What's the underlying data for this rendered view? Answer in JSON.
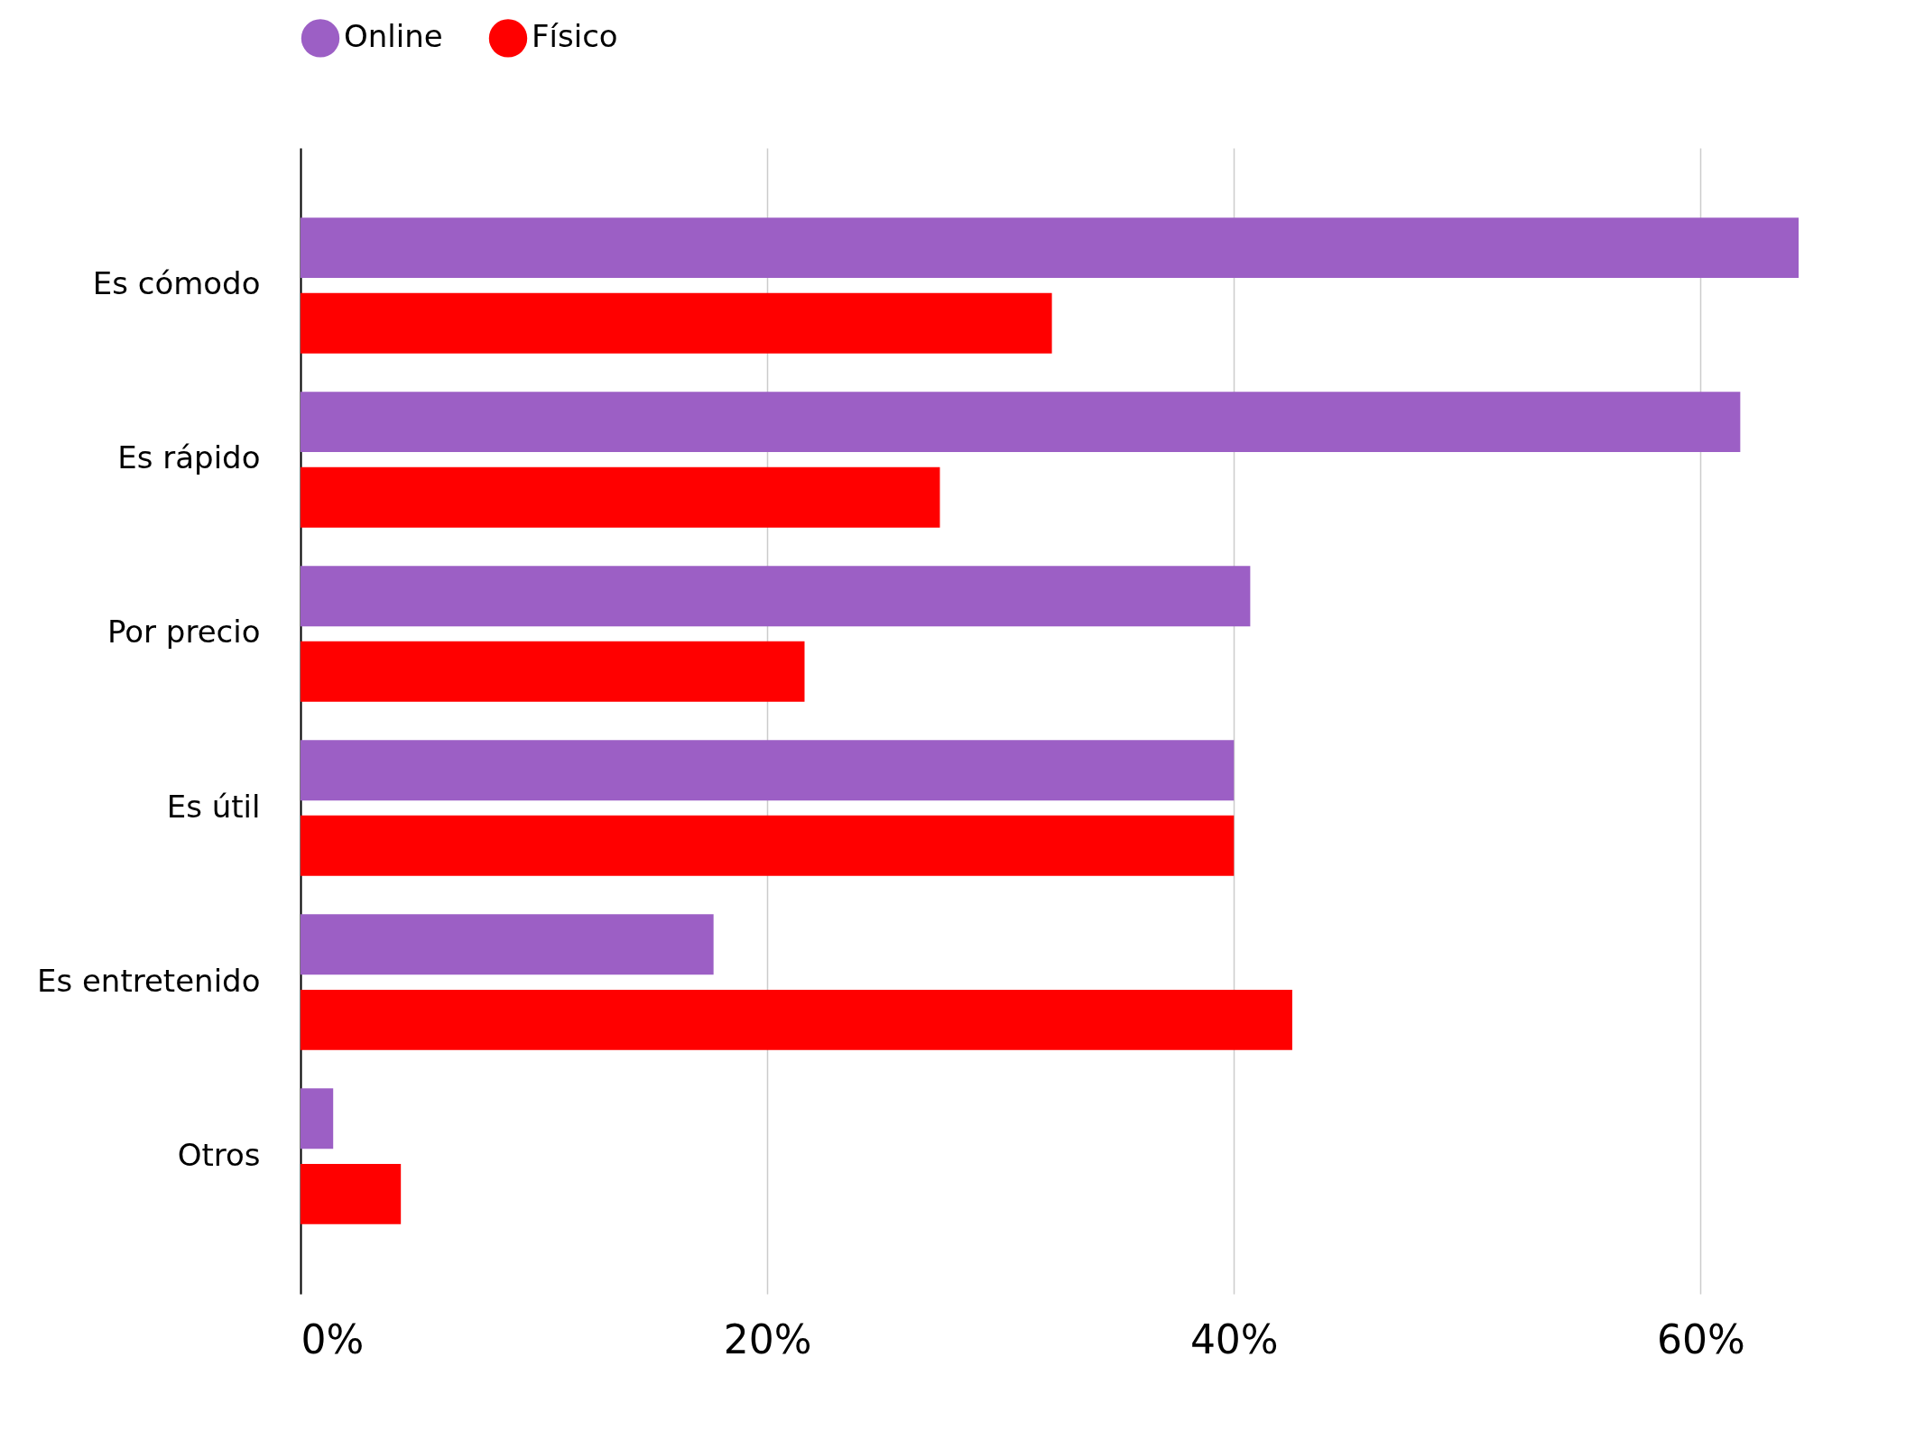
{
  "chart_data": {
    "type": "bar",
    "orientation": "horizontal",
    "categories": [
      "Es cómodo",
      "Es rápido",
      "Por precio",
      "Es útil",
      "Es entretenido",
      "Otros"
    ],
    "series": [
      {
        "name": "Online",
        "color": "#9c5fc5",
        "values": [
          64.2,
          61.7,
          40.7,
          40.0,
          17.7,
          1.4
        ]
      },
      {
        "name": "Físico",
        "color": "#ff0000",
        "values": [
          32.2,
          27.4,
          21.6,
          40.0,
          42.5,
          4.3
        ]
      }
    ],
    "xlim": [
      0,
      64.2
    ],
    "xticks": [
      {
        "value": 0,
        "label": "0%"
      },
      {
        "value": 20,
        "label": "20%"
      },
      {
        "value": 40,
        "label": "40%"
      },
      {
        "value": 60,
        "label": "60%"
      }
    ],
    "grid": "x",
    "legend": "top"
  }
}
